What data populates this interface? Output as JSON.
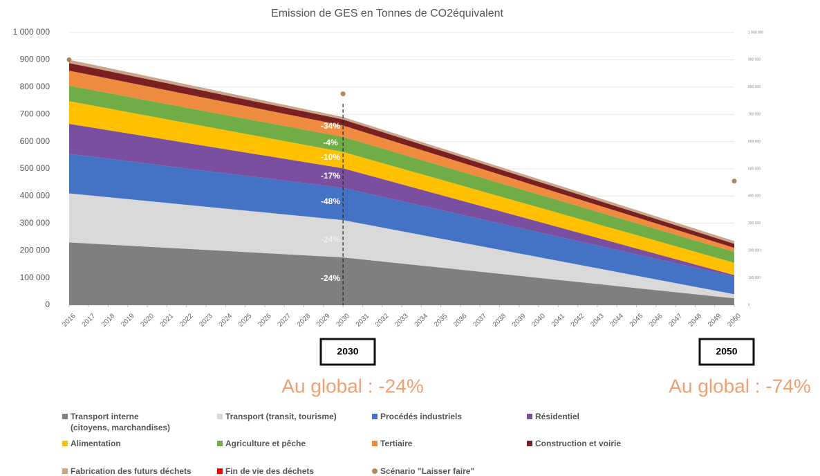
{
  "chart_data": {
    "type": "stacked_area",
    "title": "Emission de GES en Tonnes de CO2équivalent",
    "x": [
      2016,
      2030,
      2050
    ],
    "xlim": [
      2016,
      2050
    ],
    "xticks": [
      2016,
      2017,
      2018,
      2019,
      2020,
      2021,
      2022,
      2023,
      2024,
      2025,
      2026,
      2027,
      2028,
      2029,
      2030,
      2031,
      2032,
      2033,
      2034,
      2035,
      2036,
      2037,
      2038,
      2039,
      2040,
      2041,
      2042,
      2043,
      2044,
      2045,
      2046,
      2047,
      2048,
      2049,
      2050
    ],
    "ylim": [
      0,
      1000000
    ],
    "yticks": [
      0,
      {
        "value": 100000,
        "label": "100 000"
      },
      {
        "value": 200000,
        "label": "200 000"
      },
      {
        "value": 300000,
        "label": "300 000"
      },
      {
        "value": 400000,
        "label": "400 000"
      },
      {
        "value": 500000,
        "label": "500 000"
      },
      {
        "value": 600000,
        "label": "600 000"
      },
      {
        "value": 700000,
        "label": "700 000"
      },
      {
        "value": 800000,
        "label": "800 000"
      },
      {
        "value": 900000,
        "label": "900 000"
      },
      {
        "value": 1000000,
        "label": "1 000 000"
      }
    ],
    "y2lim": [
      0,
      1000000
    ],
    "y2ticks": [
      0,
      {
        "value": 100000,
        "label": "100 000"
      },
      {
        "value": 200000,
        "label": "200 000"
      },
      {
        "value": 300000,
        "label": "300 000"
      },
      {
        "value": 400000,
        "label": "400 000"
      },
      {
        "value": 500000,
        "label": "500 000"
      },
      {
        "value": 600000,
        "label": "600 000"
      },
      {
        "value": 700000,
        "label": "700 000"
      },
      {
        "value": 800000,
        "label": "800 000"
      },
      {
        "value": 900000,
        "label": "900 000"
      },
      {
        "value": 1000000,
        "label": "1 000 000"
      }
    ],
    "grid": true,
    "series": [
      {
        "name": "Transport interne\n(citoyens, marchandises)",
        "color": "#7f7f7f",
        "values": [
          230000,
          175000,
          25000
        ]
      },
      {
        "name": "Transport (transit, tourisme)",
        "color": "#d9d9d9",
        "values": [
          180000,
          137000,
          15000
        ]
      },
      {
        "name": "Procédés industriels",
        "color": "#4472c4",
        "values": [
          145000,
          118000,
          65000
        ]
      },
      {
        "name": "Résidentiel",
        "color": "#7a4fa0",
        "values": [
          110000,
          72000,
          5000
        ]
      },
      {
        "name": "Alimentation",
        "color": "#ffc000",
        "values": [
          83000,
          60000,
          45000
        ]
      },
      {
        "name": "Agriculture et pêche",
        "color": "#70ad47",
        "values": [
          57000,
          55000,
          40000
        ]
      },
      {
        "name": "Tertiaire",
        "color": "#f08c40",
        "values": [
          55000,
          42000,
          15000
        ]
      },
      {
        "name": "Construction et voirie",
        "color": "#7b2020",
        "values": [
          28000,
          22000,
          15000
        ]
      },
      {
        "name": "Fabrication des futurs déchets",
        "color": "#c9a68a",
        "values": [
          12000,
          9000,
          10000
        ]
      },
      {
        "name": "Fin de vie des déchets",
        "color": "#ff0000",
        "values": [
          0,
          0,
          0
        ]
      }
    ],
    "scenario": {
      "name": "Scénario \"Laisser faire\"",
      "color": "#b08860",
      "values": [
        900000,
        775000,
        455000
      ]
    },
    "annotations": [
      "-34%",
      "-4%",
      "-10%",
      "-17%",
      "-48%",
      "-24%",
      "-24%"
    ],
    "milestones": [
      {
        "label": "2030",
        "summary": "Au global : -24%"
      },
      {
        "label": "2050",
        "summary": "Au global : -74%"
      }
    ]
  }
}
